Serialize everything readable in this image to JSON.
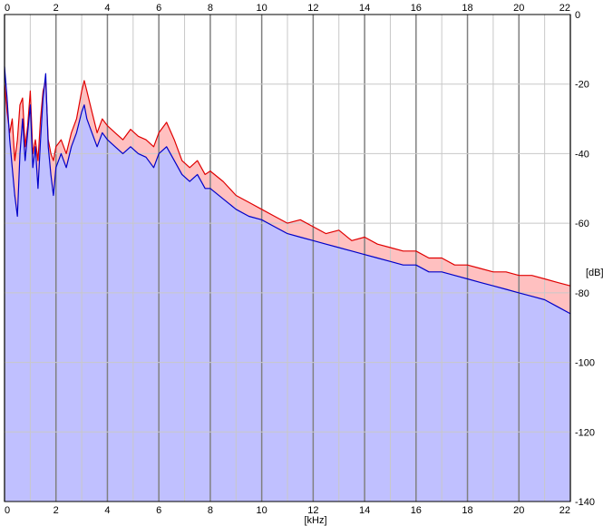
{
  "chart_data": {
    "type": "area",
    "title": "",
    "xlabel": "[kHz]",
    "ylabel": "[dB]",
    "xlim": [
      0,
      22
    ],
    "ylim": [
      -140,
      0
    ],
    "x_ticks": [
      "0",
      "2",
      "4",
      "6",
      "8",
      "10",
      "12",
      "14",
      "16",
      "18",
      "20",
      "22"
    ],
    "y_ticks": [
      "0",
      "-20",
      "-40",
      "-60",
      "-80",
      "-100",
      "-120",
      "-140"
    ],
    "grid": true,
    "colors": {
      "background": "#ffffff",
      "grid_minor": "#c8c8c8",
      "grid_major": "#808080",
      "fill_low": "#c0c0ff",
      "fill_high": "#ffc0c0",
      "red_line": "#e00000",
      "blue_line": "#0000c8"
    },
    "series": [
      {
        "color": "#e00000",
        "x": [
          0.0,
          0.1,
          0.2,
          0.3,
          0.4,
          0.5,
          0.6,
          0.7,
          0.8,
          0.9,
          1.0,
          1.1,
          1.2,
          1.3,
          1.4,
          1.5,
          1.6,
          1.7,
          1.8,
          1.9,
          2.0,
          2.2,
          2.4,
          2.6,
          2.8,
          3.0,
          3.1,
          3.2,
          3.4,
          3.6,
          3.8,
          4.0,
          4.3,
          4.6,
          4.9,
          5.2,
          5.5,
          5.8,
          6.0,
          6.3,
          6.6,
          6.9,
          7.2,
          7.5,
          7.8,
          8.0,
          8.5,
          9.0,
          9.5,
          10.0,
          10.5,
          11.0,
          11.5,
          12.0,
          12.5,
          13.0,
          13.5,
          14.0,
          14.5,
          15.0,
          15.5,
          16.0,
          16.5,
          17.0,
          17.5,
          18.0,
          18.5,
          19.0,
          19.5,
          20.0,
          20.5,
          21.0,
          21.5,
          22.0
        ],
        "values": [
          -20,
          -28,
          -34,
          -30,
          -42,
          -36,
          -26,
          -24,
          -38,
          -32,
          -22,
          -40,
          -36,
          -42,
          -30,
          -22,
          -19,
          -36,
          -40,
          -42,
          -38,
          -36,
          -40,
          -34,
          -30,
          -22,
          -19,
          -22,
          -28,
          -34,
          -30,
          -32,
          -34,
          -36,
          -33,
          -35,
          -36,
          -38,
          -34,
          -31,
          -36,
          -42,
          -44,
          -42,
          -46,
          -45,
          -48,
          -52,
          -54,
          -56,
          -58,
          -60,
          -59,
          -61,
          -63,
          -62,
          -65,
          -64,
          -66,
          -67,
          -68,
          -68,
          -70,
          -70,
          -72,
          -72,
          -73,
          -74,
          -74,
          -75,
          -75,
          -76,
          -77,
          -78
        ]
      },
      {
        "color": "#0000c8",
        "x": [
          0.0,
          0.1,
          0.2,
          0.3,
          0.4,
          0.5,
          0.6,
          0.7,
          0.8,
          0.9,
          1.0,
          1.1,
          1.2,
          1.3,
          1.4,
          1.5,
          1.6,
          1.7,
          1.8,
          1.9,
          2.0,
          2.2,
          2.4,
          2.6,
          2.8,
          3.0,
          3.1,
          3.2,
          3.4,
          3.6,
          3.8,
          4.0,
          4.3,
          4.6,
          4.9,
          5.2,
          5.5,
          5.8,
          6.0,
          6.3,
          6.6,
          6.9,
          7.2,
          7.5,
          7.8,
          8.0,
          8.5,
          9.0,
          9.5,
          10.0,
          10.5,
          11.0,
          11.5,
          12.0,
          12.5,
          13.0,
          13.5,
          14.0,
          14.5,
          15.0,
          15.5,
          16.0,
          16.5,
          17.0,
          17.5,
          18.0,
          18.5,
          19.0,
          19.5,
          20.0,
          20.5,
          21.0,
          21.5,
          22.0
        ],
        "values": [
          -15,
          -24,
          -36,
          -44,
          -52,
          -58,
          -40,
          -30,
          -42,
          -34,
          -26,
          -44,
          -38,
          -50,
          -36,
          -24,
          -17,
          -38,
          -46,
          -52,
          -44,
          -40,
          -44,
          -38,
          -34,
          -28,
          -26,
          -30,
          -34,
          -38,
          -34,
          -36,
          -38,
          -40,
          -38,
          -40,
          -41,
          -44,
          -40,
          -38,
          -42,
          -46,
          -48,
          -46,
          -50,
          -50,
          -53,
          -56,
          -58,
          -59,
          -61,
          -63,
          -64,
          -65,
          -66,
          -67,
          -68,
          -69,
          -70,
          -71,
          -72,
          -72,
          -74,
          -74,
          -75,
          -76,
          -77,
          -78,
          -79,
          -80,
          -81,
          -82,
          -84,
          -86
        ]
      }
    ]
  }
}
